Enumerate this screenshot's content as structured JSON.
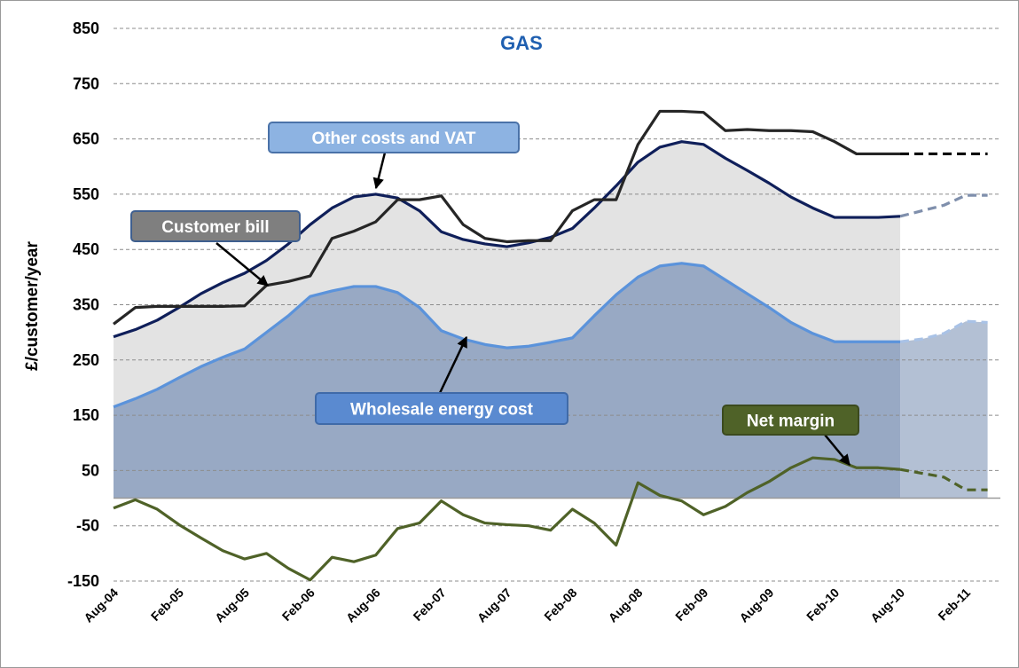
{
  "chart_data": {
    "type": "line",
    "title": "GAS",
    "ylabel": "£/customer/year",
    "categories": [
      "Aug-04",
      null,
      null,
      "Feb-05",
      null,
      null,
      "Aug-05",
      null,
      null,
      "Feb-06",
      null,
      null,
      "Aug-06",
      null,
      null,
      "Feb-07",
      null,
      null,
      "Aug-07",
      null,
      null,
      "Feb-08",
      null,
      null,
      "Aug-08",
      null,
      null,
      "Feb-09",
      null,
      null,
      "Aug-09",
      null,
      null,
      "Feb-10",
      null,
      null,
      "Aug-10",
      null,
      null,
      "Feb-11",
      null
    ],
    "ylim": [
      -150,
      850
    ],
    "yticks": [
      -150,
      -50,
      50,
      150,
      250,
      350,
      450,
      550,
      650,
      750,
      850
    ],
    "grid": true,
    "series": [
      {
        "name": "Other costs and  VAT",
        "color": "#0f1f5a",
        "fill": "#e3e3e3",
        "dashed": false,
        "values": [
          292,
          305,
          322,
          345,
          370,
          390,
          407,
          430,
          460,
          495,
          525,
          545,
          550,
          543,
          520,
          482,
          468,
          460,
          455,
          462,
          472,
          488,
          525,
          565,
          608,
          635,
          645,
          640,
          615,
          593,
          570,
          545,
          525,
          508,
          508,
          508,
          510,
          null,
          null,
          null,
          null
        ]
      },
      {
        "color": "#7f8fac",
        "dashed": true,
        "values": [
          null,
          null,
          null,
          null,
          null,
          null,
          null,
          null,
          null,
          null,
          null,
          null,
          null,
          null,
          null,
          null,
          null,
          null,
          null,
          null,
          null,
          null,
          null,
          null,
          null,
          null,
          null,
          null,
          null,
          null,
          null,
          null,
          null,
          null,
          null,
          null,
          510,
          520,
          530,
          548,
          548
        ]
      },
      {
        "name": "Wholesale energy cost",
        "color": "#5b93db",
        "fill": "#98a9c4",
        "dashed": false,
        "values": [
          165,
          180,
          197,
          218,
          238,
          255,
          270,
          300,
          330,
          365,
          375,
          383,
          383,
          372,
          345,
          303,
          288,
          278,
          272,
          275,
          282,
          290,
          330,
          368,
          400,
          420,
          425,
          420,
          395,
          370,
          345,
          318,
          298,
          283,
          283,
          283,
          283,
          null,
          null,
          null,
          null
        ]
      },
      {
        "color": "#a9c2e6",
        "fill": "#b3c0d4",
        "dashed": true,
        "values": [
          null,
          null,
          null,
          null,
          null,
          null,
          null,
          null,
          null,
          null,
          null,
          null,
          null,
          null,
          null,
          null,
          null,
          null,
          null,
          null,
          null,
          null,
          null,
          null,
          null,
          null,
          null,
          null,
          null,
          null,
          null,
          null,
          null,
          null,
          null,
          null,
          283,
          288,
          298,
          320,
          318
        ]
      },
      {
        "name": "Customer bill",
        "color": "#262626",
        "dashed": false,
        "values": [
          315,
          345,
          347,
          347,
          347,
          347,
          348,
          385,
          392,
          402,
          470,
          483,
          500,
          540,
          540,
          547,
          495,
          470,
          464,
          466,
          466,
          520,
          540,
          540,
          640,
          700,
          700,
          698,
          665,
          667,
          665,
          665,
          663,
          645,
          623,
          623,
          623,
          null,
          null,
          null,
          null
        ]
      },
      {
        "color": "#000000",
        "dashed": true,
        "values": [
          null,
          null,
          null,
          null,
          null,
          null,
          null,
          null,
          null,
          null,
          null,
          null,
          null,
          null,
          null,
          null,
          null,
          null,
          null,
          null,
          null,
          null,
          null,
          null,
          null,
          null,
          null,
          null,
          null,
          null,
          null,
          null,
          null,
          null,
          null,
          null,
          623,
          623,
          623,
          623,
          623
        ]
      },
      {
        "name": "Net margin",
        "color": "#4f6228",
        "dashed": false,
        "values": [
          -18,
          -3,
          -20,
          -48,
          -72,
          -95,
          -110,
          -100,
          -127,
          -148,
          -107,
          -115,
          -103,
          -55,
          -45,
          -5,
          -30,
          -45,
          -48,
          -50,
          -58,
          -20,
          -45,
          -85,
          28,
          5,
          -5,
          -30,
          -15,
          10,
          30,
          55,
          73,
          70,
          55,
          55,
          52,
          null,
          null,
          null,
          null
        ]
      },
      {
        "color": "#4f6228",
        "dashed": true,
        "values": [
          null,
          null,
          null,
          null,
          null,
          null,
          null,
          null,
          null,
          null,
          null,
          null,
          null,
          null,
          null,
          null,
          null,
          null,
          null,
          null,
          null,
          null,
          null,
          null,
          null,
          null,
          null,
          null,
          null,
          null,
          null,
          null,
          null,
          null,
          null,
          null,
          52,
          45,
          38,
          15,
          15
        ]
      }
    ]
  }
}
